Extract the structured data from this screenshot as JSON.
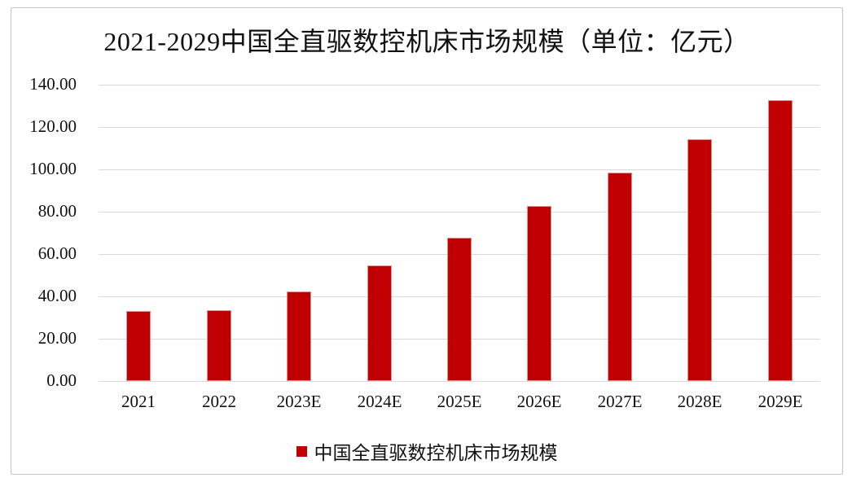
{
  "chart_data": {
    "type": "bar",
    "title": "2021-2029中国全直驱数控机床市场规模（单位：亿元）",
    "categories": [
      "2021",
      "2022",
      "2023E",
      "2024E",
      "2025E",
      "2026E",
      "2027E",
      "2028E",
      "2029E"
    ],
    "values": [
      33.2,
      33.6,
      42.2,
      54.5,
      67.8,
      82.8,
      98.5,
      114.4,
      132.5
    ],
    "series_name": "中国全直驱数控机床市场规模",
    "legend": [
      "中国全直驱数控机床市场规模"
    ],
    "legend_position": "bottom",
    "xlabel": "",
    "ylabel": "",
    "ylim": [
      0,
      140
    ],
    "ytick_step": 20,
    "ytick_labels": [
      "0.00",
      "20.00",
      "40.00",
      "60.00",
      "80.00",
      "100.00",
      "120.00",
      "140.00"
    ],
    "grid": true,
    "colors": {
      "bar": "#C00000",
      "bar_edge": "#DD9291",
      "gridline": "#D9D9D9",
      "text": "#111111",
      "frame_border": "#C6C6C6",
      "background": "#FFFFFF"
    }
  }
}
